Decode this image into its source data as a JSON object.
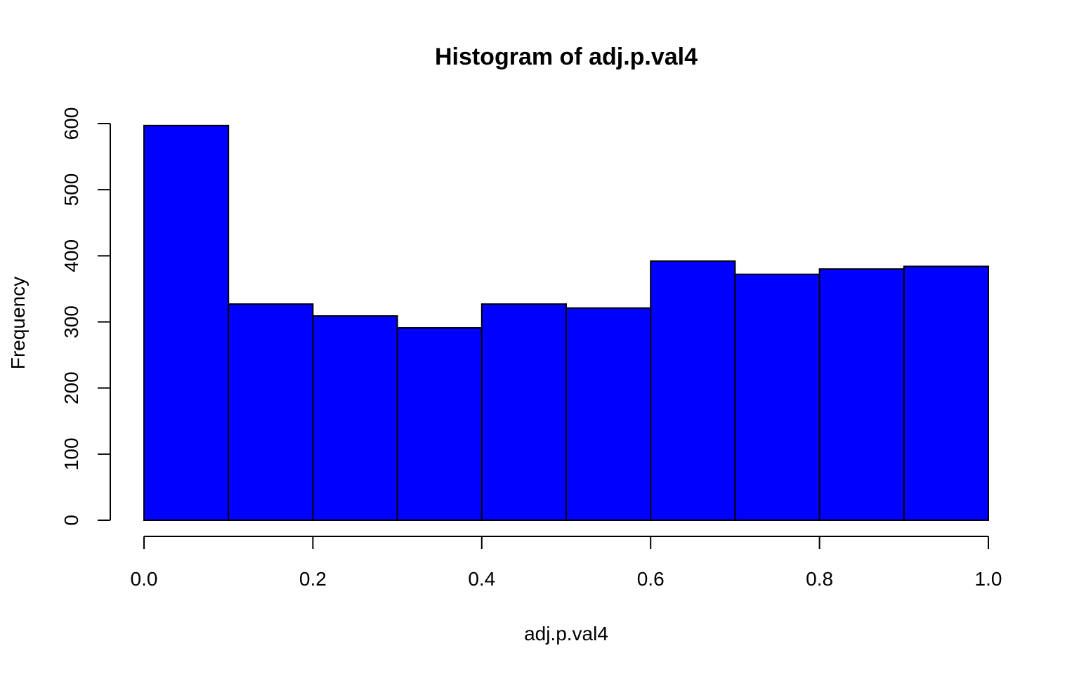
{
  "chart_data": {
    "type": "bar",
    "title": "Histogram of adj.p.val4",
    "xlabel": "adj.p.val4",
    "ylabel": "Frequency",
    "bin_edges": [
      0.0,
      0.1,
      0.2,
      0.3,
      0.4,
      0.5,
      0.6,
      0.7,
      0.8,
      0.9,
      1.0
    ],
    "values": [
      597,
      327,
      309,
      291,
      327,
      321,
      392,
      372,
      380,
      384
    ],
    "xlim": [
      0.0,
      1.0
    ],
    "ylim": [
      0,
      600
    ],
    "x_ticks": [
      "0.0",
      "0.2",
      "0.4",
      "0.6",
      "0.8",
      "1.0"
    ],
    "x_tick_values": [
      0.0,
      0.2,
      0.4,
      0.6,
      0.8,
      1.0
    ],
    "y_ticks": [
      "0",
      "100",
      "200",
      "300",
      "400",
      "500",
      "600"
    ],
    "y_tick_values": [
      0,
      100,
      200,
      300,
      400,
      500,
      600
    ],
    "bar_color": "#0000ff",
    "grid": false,
    "legend": "none"
  }
}
